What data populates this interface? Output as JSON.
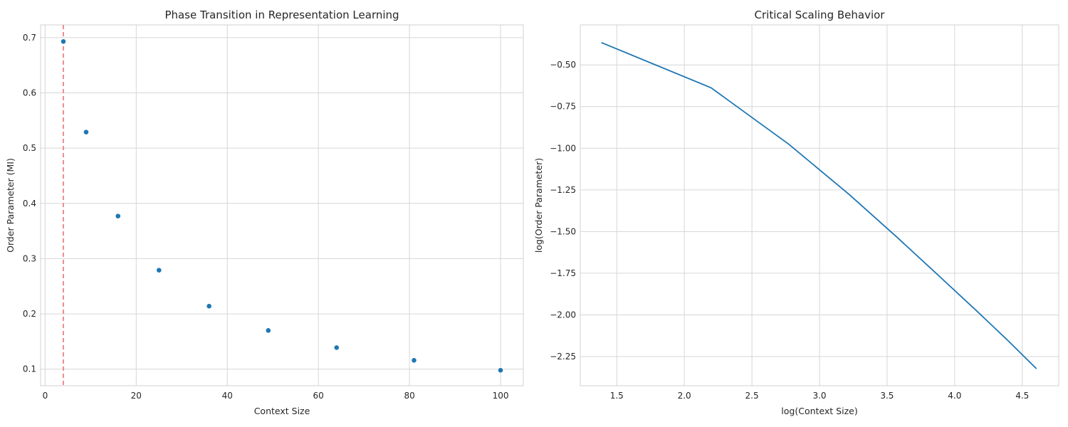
{
  "colors": {
    "series": "#1f77b4",
    "critical_line": "#f08080",
    "grid": "#d6d6d6",
    "text": "#262626"
  },
  "chart_data": [
    {
      "type": "scatter",
      "title": "Phase Transition in Representation Learning",
      "xlabel": "Context Size",
      "ylabel": "Order Parameter (MI)",
      "xlim": [
        -1,
        105
      ],
      "ylim": [
        0.07,
        0.723
      ],
      "xticks": [
        0,
        20,
        40,
        60,
        80,
        100
      ],
      "xtick_labels": [
        "0",
        "20",
        "40",
        "60",
        "80",
        "100"
      ],
      "yticks": [
        0.1,
        0.2,
        0.3,
        0.4,
        0.5,
        0.6,
        0.7
      ],
      "ytick_labels": [
        "0.1",
        "0.2",
        "0.3",
        "0.4",
        "0.5",
        "0.6",
        "0.7"
      ],
      "x": [
        4,
        9,
        16,
        25,
        36,
        49,
        64,
        81,
        100
      ],
      "y": [
        0.693,
        0.529,
        0.377,
        0.279,
        0.214,
        0.17,
        0.139,
        0.116,
        0.098
      ],
      "vline_x": 4,
      "grid": true
    },
    {
      "type": "line",
      "title": "Critical Scaling Behavior",
      "xlabel": "log(Context Size)",
      "ylabel": "log(Order Parameter)",
      "xlim": [
        1.23,
        4.77
      ],
      "ylim": [
        -2.425,
        -0.26
      ],
      "xticks": [
        1.5,
        2.0,
        2.5,
        3.0,
        3.5,
        4.0,
        4.5
      ],
      "xtick_labels": [
        "1.5",
        "2.0",
        "2.5",
        "3.0",
        "3.5",
        "4.0",
        "4.5"
      ],
      "yticks": [
        -0.5,
        -0.75,
        -1.0,
        -1.25,
        -1.5,
        -1.75,
        -2.0,
        -2.25
      ],
      "ytick_labels": [
        "−0.50",
        "−0.75",
        "−1.00",
        "−1.25",
        "−1.50",
        "−1.75",
        "−2.00",
        "−2.25"
      ],
      "x": [
        1.386,
        2.197,
        2.773,
        3.219,
        3.584,
        3.892,
        4.159,
        4.394,
        4.605
      ],
      "y": [
        -0.366,
        -0.637,
        -0.976,
        -1.277,
        -1.542,
        -1.772,
        -1.973,
        -2.154,
        -2.323
      ],
      "grid": true
    }
  ]
}
